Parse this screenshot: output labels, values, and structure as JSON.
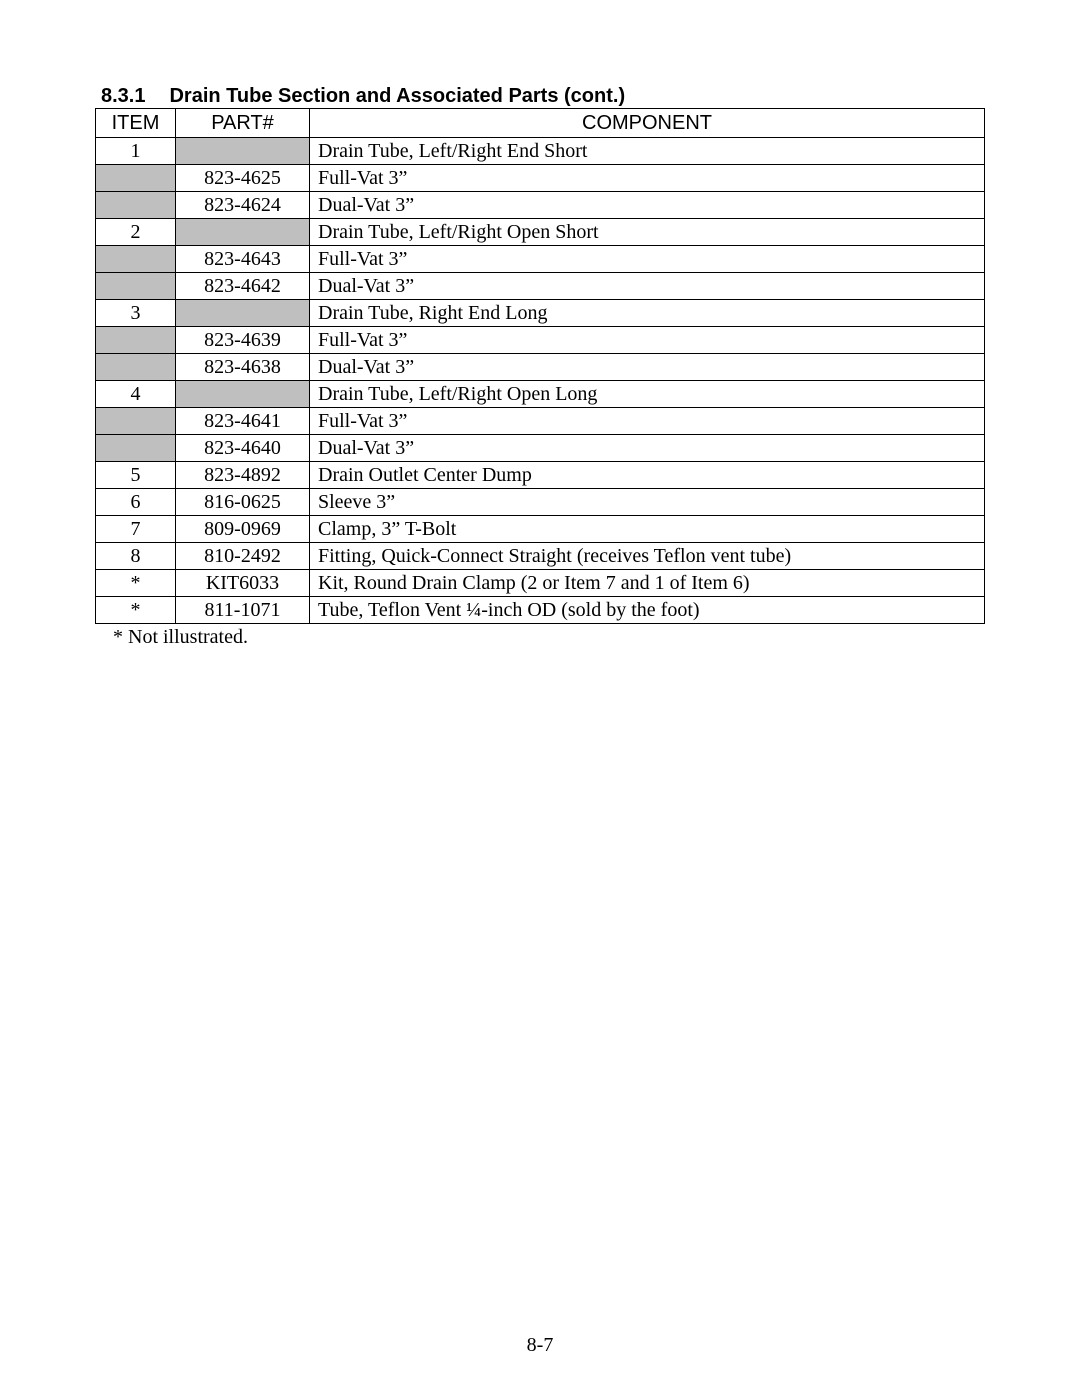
{
  "section": {
    "number": "8.3.1",
    "title": "Drain Tube Section and Associated Parts (cont.)"
  },
  "columns": {
    "item": "ITEM",
    "part": "PART#",
    "component": "COMPONENT"
  },
  "rows": [
    {
      "item": "1",
      "part": "",
      "component": "Drain Tube, Left/Right End Short",
      "itemGray": false,
      "partGray": true
    },
    {
      "item": "",
      "part": "823-4625",
      "component": "Full-Vat 3”",
      "itemGray": true,
      "partGray": false
    },
    {
      "item": "",
      "part": "823-4624",
      "component": "Dual-Vat 3”",
      "itemGray": true,
      "partGray": false
    },
    {
      "item": "2",
      "part": "",
      "component": "Drain Tube, Left/Right Open Short",
      "itemGray": false,
      "partGray": true
    },
    {
      "item": "",
      "part": "823-4643",
      "component": "Full-Vat 3”",
      "itemGray": true,
      "partGray": false
    },
    {
      "item": "",
      "part": "823-4642",
      "component": "Dual-Vat 3”",
      "itemGray": true,
      "partGray": false
    },
    {
      "item": "3",
      "part": "",
      "component": "Drain Tube, Right End Long",
      "itemGray": false,
      "partGray": true
    },
    {
      "item": "",
      "part": "823-4639",
      "component": "Full-Vat 3”",
      "itemGray": true,
      "partGray": false
    },
    {
      "item": "",
      "part": "823-4638",
      "component": "Dual-Vat 3”",
      "itemGray": true,
      "partGray": false
    },
    {
      "item": "4",
      "part": "",
      "component": "Drain Tube, Left/Right Open Long",
      "itemGray": false,
      "partGray": true
    },
    {
      "item": "",
      "part": "823-4641",
      "component": "Full-Vat 3”",
      "itemGray": true,
      "partGray": false
    },
    {
      "item": "",
      "part": "823-4640",
      "component": "Dual-Vat 3”",
      "itemGray": true,
      "partGray": false
    },
    {
      "item": "5",
      "part": "823-4892",
      "component": "Drain Outlet Center Dump",
      "itemGray": false,
      "partGray": false
    },
    {
      "item": "6",
      "part": "816-0625",
      "component": "Sleeve 3”",
      "itemGray": false,
      "partGray": false
    },
    {
      "item": "7",
      "part": "809-0969",
      "component": "Clamp, 3” T-Bolt",
      "itemGray": false,
      "partGray": false
    },
    {
      "item": "8",
      "part": "810-2492",
      "component": "Fitting, Quick-Connect Straight (receives Teflon vent tube)",
      "itemGray": false,
      "partGray": false
    },
    {
      "item": "*",
      "part": "KIT6033",
      "component": "Kit, Round Drain Clamp (2 or Item 7 and 1 of Item 6)",
      "itemGray": false,
      "partGray": false
    },
    {
      "item": "*",
      "part": "811-1071",
      "component": "Tube, Teflon Vent ¼-inch OD (sold by the foot)",
      "itemGray": false,
      "partGray": false
    }
  ],
  "footnote": "* Not illustrated.",
  "pageNumber": "8-7"
}
